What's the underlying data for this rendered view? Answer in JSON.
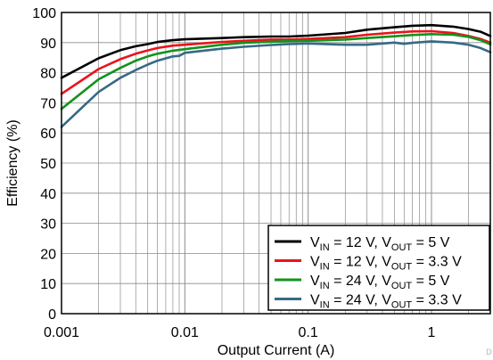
{
  "chart_data": {
    "type": "line",
    "xlabel": "Output Current (A)",
    "ylabel": "Efficiency (%)",
    "x_scale": "log",
    "xlim": [
      0.001,
      3
    ],
    "ylim": [
      0,
      100
    ],
    "grid": true,
    "legend_position": "bottom-right",
    "x_ticks": [
      {
        "value": 0.001,
        "label": "0.001"
      },
      {
        "value": 0.01,
        "label": "0.01"
      },
      {
        "value": 0.1,
        "label": "0.1"
      },
      {
        "value": 1,
        "label": "1"
      }
    ],
    "y_ticks": [
      0,
      10,
      20,
      30,
      40,
      50,
      60,
      70,
      80,
      90,
      100
    ],
    "series": [
      {
        "legend": {
          "vin": "12",
          "vout": "5"
        },
        "color": "#000000",
        "x": [
          0.001,
          0.002,
          0.003,
          0.004,
          0.005,
          0.006,
          0.008,
          0.01,
          0.02,
          0.03,
          0.05,
          0.07,
          0.1,
          0.2,
          0.3,
          0.5,
          0.7,
          1,
          1.5,
          2,
          2.5,
          3
        ],
        "y": [
          78.3,
          84.8,
          87.5,
          88.8,
          89.5,
          90.2,
          90.8,
          91.1,
          91.5,
          91.8,
          92.0,
          92.0,
          92.3,
          93.2,
          94.3,
          95.1,
          95.6,
          95.8,
          95.3,
          94.5,
          93.6,
          92.2
        ]
      },
      {
        "legend": {
          "vin": "12",
          "vout": "3.3"
        },
        "color": "#e8141c",
        "x": [
          0.001,
          0.002,
          0.003,
          0.004,
          0.005,
          0.006,
          0.008,
          0.01,
          0.02,
          0.03,
          0.05,
          0.07,
          0.1,
          0.2,
          0.3,
          0.5,
          0.7,
          1,
          1.5,
          2,
          2.5,
          3
        ],
        "y": [
          73.0,
          81.2,
          84.5,
          86.3,
          87.4,
          88.2,
          89.0,
          89.3,
          90.2,
          90.6,
          91.0,
          91.0,
          91.2,
          91.8,
          92.6,
          93.3,
          93.7,
          93.8,
          93.2,
          92.2,
          91.2,
          90.0
        ]
      },
      {
        "legend": {
          "vin": "24",
          "vout": "5"
        },
        "color": "#12931c",
        "x": [
          0.001,
          0.002,
          0.003,
          0.004,
          0.005,
          0.006,
          0.008,
          0.01,
          0.02,
          0.03,
          0.05,
          0.07,
          0.1,
          0.2,
          0.3,
          0.5,
          0.7,
          1,
          1.5,
          2,
          2.5,
          3
        ],
        "y": [
          68.0,
          77.8,
          81.6,
          84.0,
          85.4,
          86.3,
          87.3,
          87.8,
          89.3,
          89.9,
          90.3,
          90.5,
          90.6,
          91.0,
          91.5,
          92.1,
          92.5,
          92.8,
          92.6,
          91.9,
          90.8,
          89.4
        ]
      },
      {
        "legend": {
          "vin": "24",
          "vout": "3.3"
        },
        "color": "#356a86",
        "x": [
          0.001,
          0.002,
          0.003,
          0.004,
          0.005,
          0.006,
          0.008,
          0.009,
          0.01,
          0.02,
          0.03,
          0.05,
          0.07,
          0.1,
          0.2,
          0.3,
          0.5,
          0.6,
          0.7,
          1,
          1.5,
          2,
          2.5,
          3
        ],
        "y": [
          62.0,
          73.6,
          78.3,
          80.9,
          82.7,
          84.0,
          85.4,
          85.6,
          86.6,
          88.0,
          88.6,
          89.2,
          89.5,
          89.7,
          89.3,
          89.3,
          90.0,
          89.6,
          89.9,
          90.4,
          90.0,
          89.3,
          88.2,
          86.8
        ]
      }
    ]
  },
  "legend": {
    "vin_symbol": "V",
    "vin_subscript": "IN",
    "vout_symbol": "V",
    "vout_subscript": "OUT",
    "unit": "V"
  },
  "corner_mark": "D"
}
